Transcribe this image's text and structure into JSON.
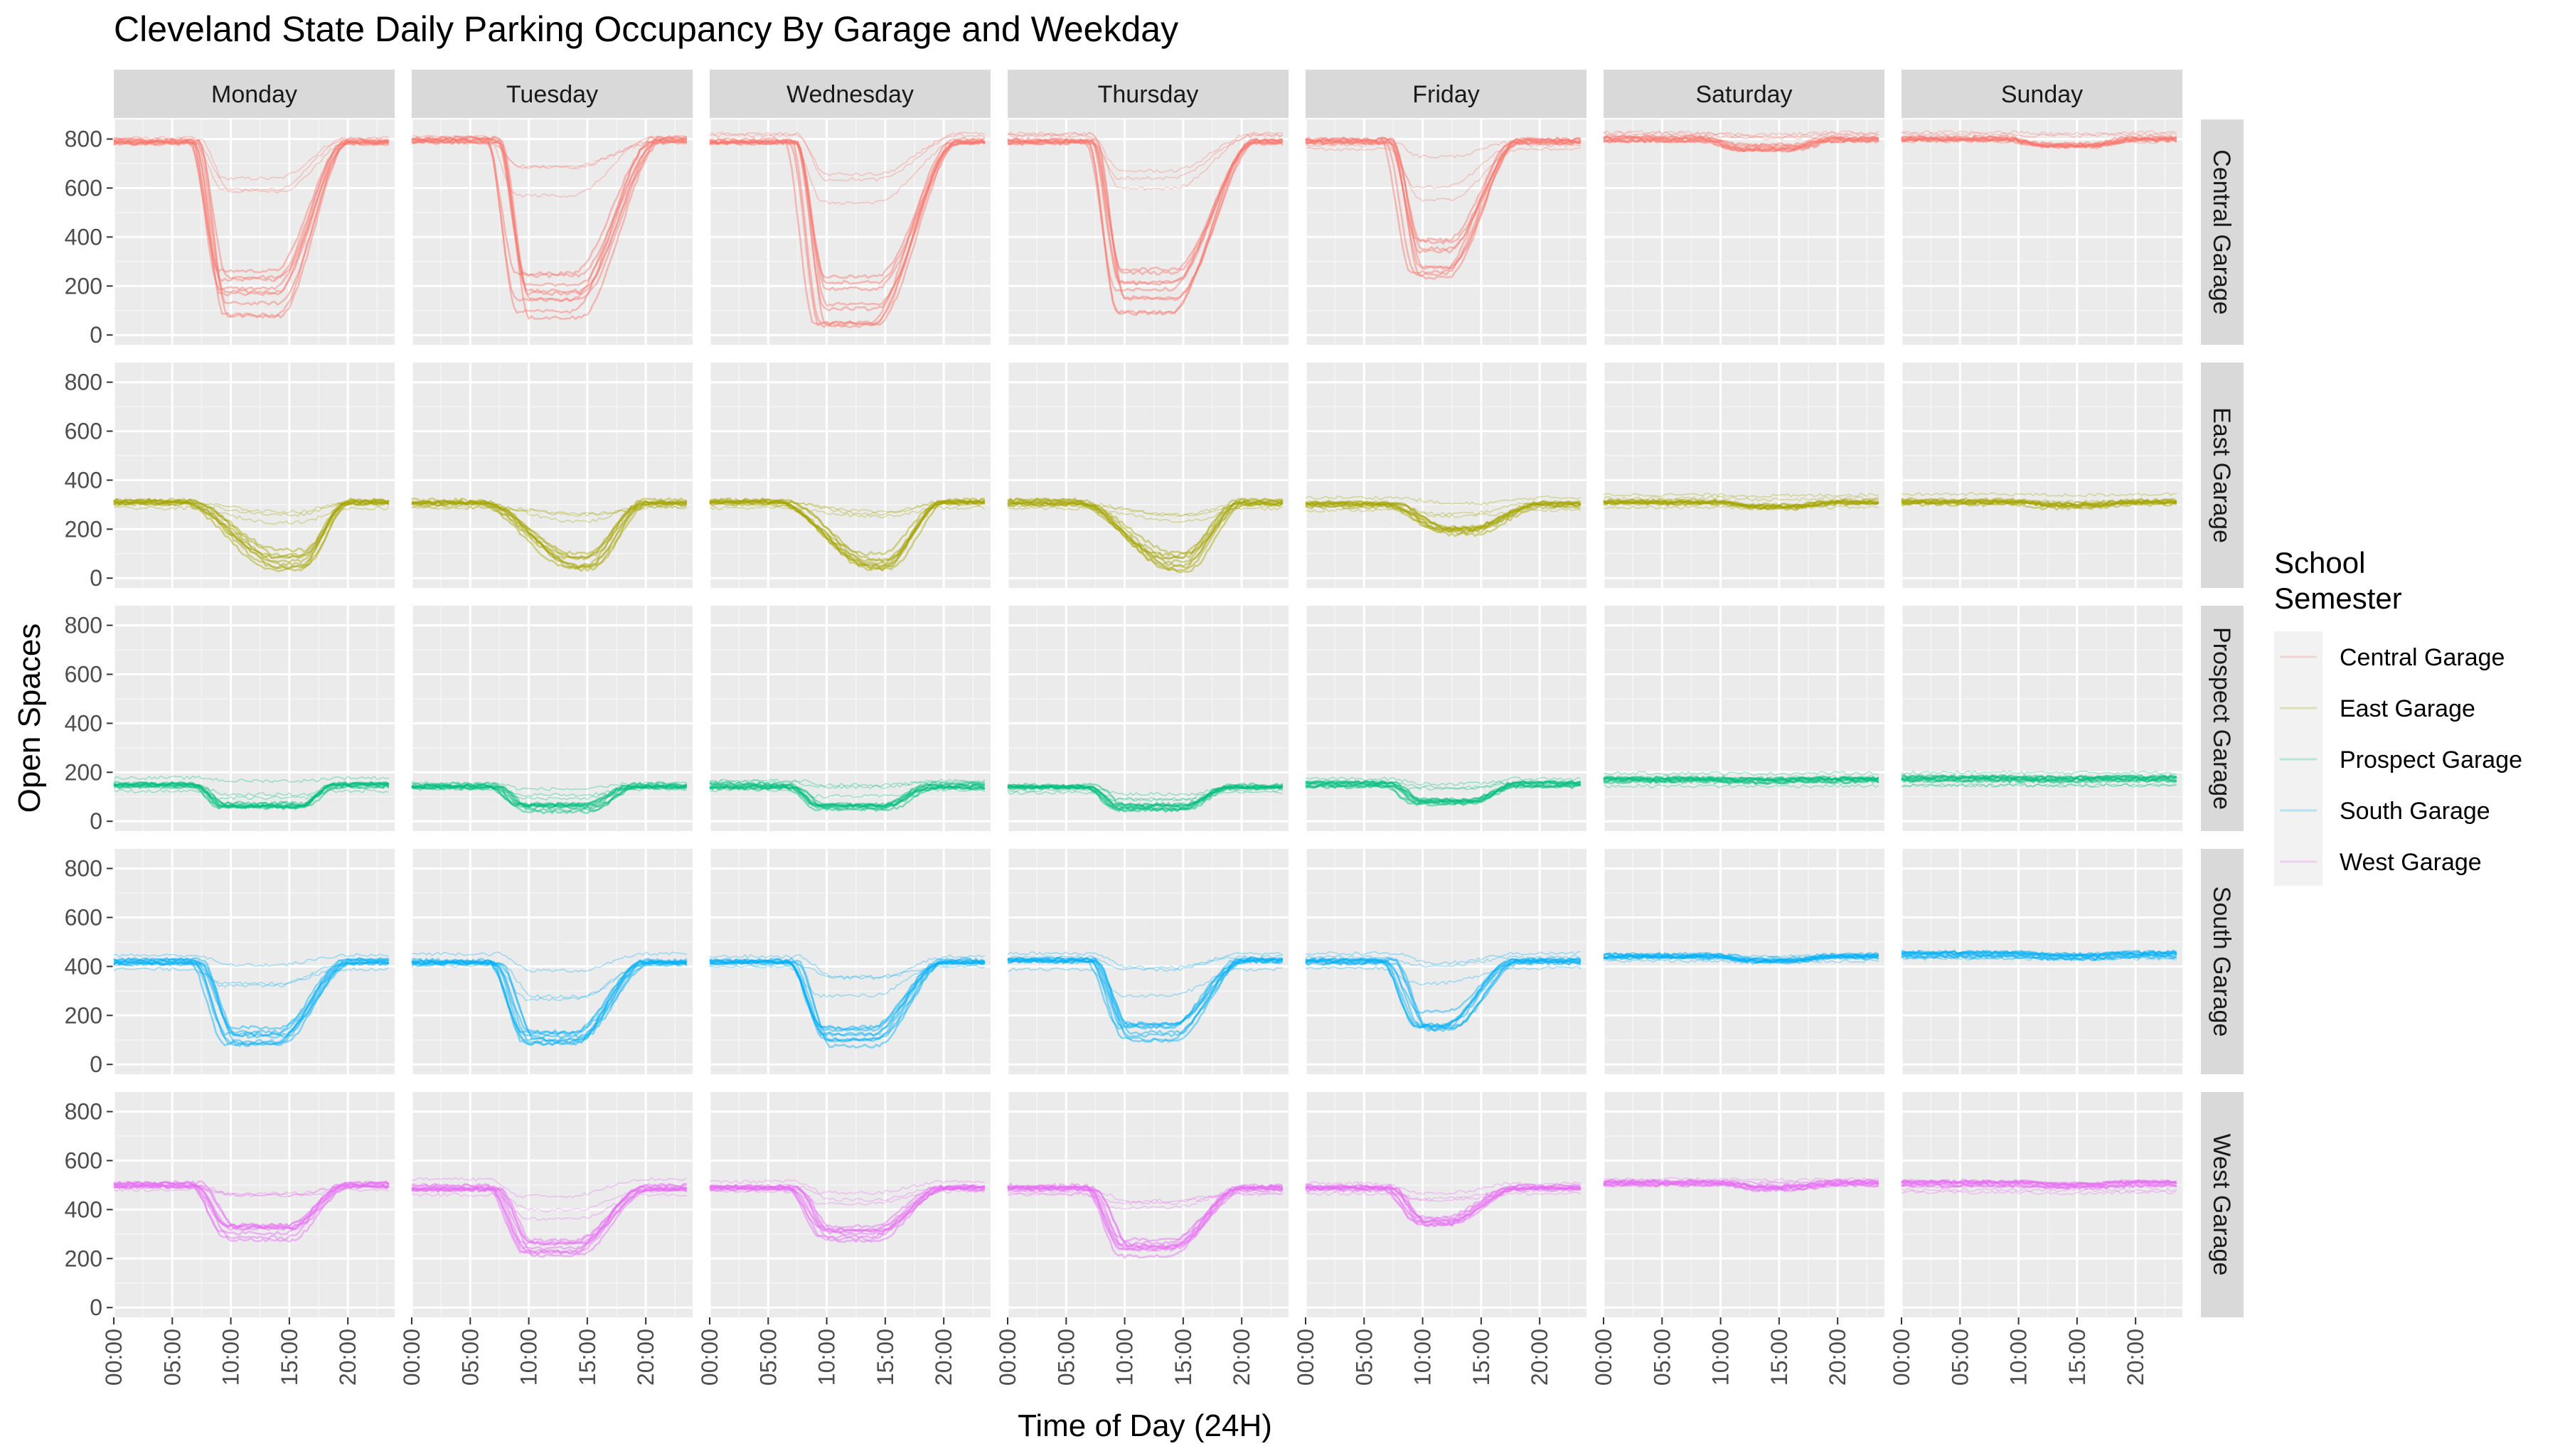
{
  "chart_data": {
    "type": "line",
    "title": "Cleveland State Daily Parking Occupancy By Garage and Weekday",
    "xlabel": "Time of Day (24H)",
    "ylabel": "Open Spaces",
    "x_ticks": [
      "00:00",
      "05:00",
      "10:00",
      "15:00",
      "20:00"
    ],
    "x_range": [
      0,
      24
    ],
    "y_ticks": [
      0,
      200,
      400,
      600,
      800
    ],
    "ylim": [
      -40,
      880
    ],
    "grid": true,
    "facet_columns": [
      "Monday",
      "Tuesday",
      "Wednesday",
      "Thursday",
      "Friday",
      "Saturday",
      "Sunday"
    ],
    "facet_rows": [
      "Central Garage",
      "East Garage",
      "Prospect Garage",
      "South Garage",
      "West Garage"
    ],
    "legend": {
      "title_lines": [
        "School",
        "Semester"
      ],
      "position": "right",
      "entries": [
        "Central Garage",
        "East Garage",
        "Prospect Garage",
        "South Garage",
        "West Garage"
      ]
    },
    "colors": {
      "Central Garage": "#F8766D",
      "East Garage": "#A3A500",
      "Prospect Garage": "#00BF7D",
      "South Garage": "#00B0F6",
      "West Garage": "#E76BF3"
    },
    "series_per_panel": 12,
    "typical_profiles": {
      "Central Garage": {
        "Monday": {
          "baseline": 790,
          "trough": 100,
          "fall_start": 7,
          "fall_end": 9.5,
          "rise_start": 14,
          "rise_end": 20
        },
        "Tuesday": {
          "baseline": 795,
          "trough": 80,
          "fall_start": 7,
          "fall_end": 9.5,
          "rise_start": 14,
          "rise_end": 21
        },
        "Wednesday": {
          "baseline": 790,
          "trough": 70,
          "fall_start": 7,
          "fall_end": 9.5,
          "rise_start": 14,
          "rise_end": 21
        },
        "Thursday": {
          "baseline": 790,
          "trough": 100,
          "fall_start": 7,
          "fall_end": 9.5,
          "rise_start": 14,
          "rise_end": 21
        },
        "Friday": {
          "baseline": 790,
          "trough": 250,
          "fall_start": 7,
          "fall_end": 9.5,
          "rise_start": 12,
          "rise_end": 18
        },
        "Saturday": {
          "baseline": 800,
          "trough": 760,
          "fall_start": 9,
          "fall_end": 12,
          "rise_start": 16,
          "rise_end": 20
        },
        "Sunday": {
          "baseline": 800,
          "trough": 770,
          "fall_start": 9,
          "fall_end": 12,
          "rise_start": 16,
          "rise_end": 20
        }
      },
      "East Garage": {
        "Monday": {
          "baseline": 310,
          "trough": 40,
          "fall_start": 6,
          "fall_end": 14,
          "rise_start": 16,
          "rise_end": 20
        },
        "Tuesday": {
          "baseline": 310,
          "trough": 50,
          "fall_start": 6,
          "fall_end": 14,
          "rise_start": 15,
          "rise_end": 20
        },
        "Wednesday": {
          "baseline": 310,
          "trough": 40,
          "fall_start": 6,
          "fall_end": 14,
          "rise_start": 15,
          "rise_end": 20
        },
        "Thursday": {
          "baseline": 310,
          "trough": 50,
          "fall_start": 6,
          "fall_end": 14,
          "rise_start": 15,
          "rise_end": 20
        },
        "Friday": {
          "baseline": 300,
          "trough": 180,
          "fall_start": 7,
          "fall_end": 12,
          "rise_start": 14,
          "rise_end": 20
        },
        "Saturday": {
          "baseline": 310,
          "trough": 290,
          "fall_start": 10,
          "fall_end": 13,
          "rise_start": 16,
          "rise_end": 20
        },
        "Sunday": {
          "baseline": 310,
          "trough": 295,
          "fall_start": 10,
          "fall_end": 13,
          "rise_start": 16,
          "rise_end": 20
        }
      },
      "Prospect Garage": {
        "Monday": {
          "baseline": 150,
          "trough": 60,
          "fall_start": 7,
          "fall_end": 9.5,
          "rise_start": 16,
          "rise_end": 19
        },
        "Tuesday": {
          "baseline": 145,
          "trough": 50,
          "fall_start": 7,
          "fall_end": 9.5,
          "rise_start": 15,
          "rise_end": 19
        },
        "Wednesday": {
          "baseline": 145,
          "trough": 50,
          "fall_start": 7,
          "fall_end": 9.5,
          "rise_start": 15,
          "rise_end": 19
        },
        "Thursday": {
          "baseline": 145,
          "trough": 55,
          "fall_start": 7,
          "fall_end": 9.5,
          "rise_start": 15,
          "rise_end": 19
        },
        "Friday": {
          "baseline": 150,
          "trough": 70,
          "fall_start": 7,
          "fall_end": 9.5,
          "rise_start": 14,
          "rise_end": 18
        },
        "Saturday": {
          "baseline": 170,
          "trough": 165,
          "fall_start": 9,
          "fall_end": 12,
          "rise_start": 14,
          "rise_end": 18
        },
        "Sunday": {
          "baseline": 175,
          "trough": 172,
          "fall_start": 9,
          "fall_end": 12,
          "rise_start": 14,
          "rise_end": 18
        }
      },
      "South Garage": {
        "Monday": {
          "baseline": 420,
          "trough": 90,
          "fall_start": 7,
          "fall_end": 10,
          "rise_start": 14,
          "rise_end": 20
        },
        "Tuesday": {
          "baseline": 420,
          "trough": 70,
          "fall_start": 7,
          "fall_end": 10,
          "rise_start": 14,
          "rise_end": 20
        },
        "Wednesday": {
          "baseline": 420,
          "trough": 80,
          "fall_start": 7,
          "fall_end": 10,
          "rise_start": 14,
          "rise_end": 20
        },
        "Thursday": {
          "baseline": 420,
          "trough": 80,
          "fall_start": 7,
          "fall_end": 10,
          "rise_start": 14,
          "rise_end": 20
        },
        "Friday": {
          "baseline": 420,
          "trough": 150,
          "fall_start": 7,
          "fall_end": 10,
          "rise_start": 12,
          "rise_end": 18
        },
        "Saturday": {
          "baseline": 440,
          "trough": 420,
          "fall_start": 10,
          "fall_end": 13,
          "rise_start": 16,
          "rise_end": 20
        },
        "Sunday": {
          "baseline": 450,
          "trough": 440,
          "fall_start": 10,
          "fall_end": 13,
          "rise_start": 16,
          "rise_end": 20
        }
      },
      "West Garage": {
        "Monday": {
          "baseline": 500,
          "trough": 290,
          "fall_start": 7,
          "fall_end": 10,
          "rise_start": 15,
          "rise_end": 20
        },
        "Tuesday": {
          "baseline": 490,
          "trough": 230,
          "fall_start": 7,
          "fall_end": 10,
          "rise_start": 14,
          "rise_end": 20
        },
        "Wednesday": {
          "baseline": 490,
          "trough": 280,
          "fall_start": 7,
          "fall_end": 10,
          "rise_start": 14,
          "rise_end": 20
        },
        "Thursday": {
          "baseline": 490,
          "trough": 230,
          "fall_start": 7,
          "fall_end": 10,
          "rise_start": 14,
          "rise_end": 20
        },
        "Friday": {
          "baseline": 490,
          "trough": 340,
          "fall_start": 7,
          "fall_end": 10,
          "rise_start": 12,
          "rise_end": 18
        },
        "Saturday": {
          "baseline": 510,
          "trough": 490,
          "fall_start": 10,
          "fall_end": 13,
          "rise_start": 16,
          "rise_end": 20
        },
        "Sunday": {
          "baseline": 505,
          "trough": 495,
          "fall_start": 10,
          "fall_end": 13,
          "rise_start": 16,
          "rise_end": 20
        }
      }
    }
  }
}
